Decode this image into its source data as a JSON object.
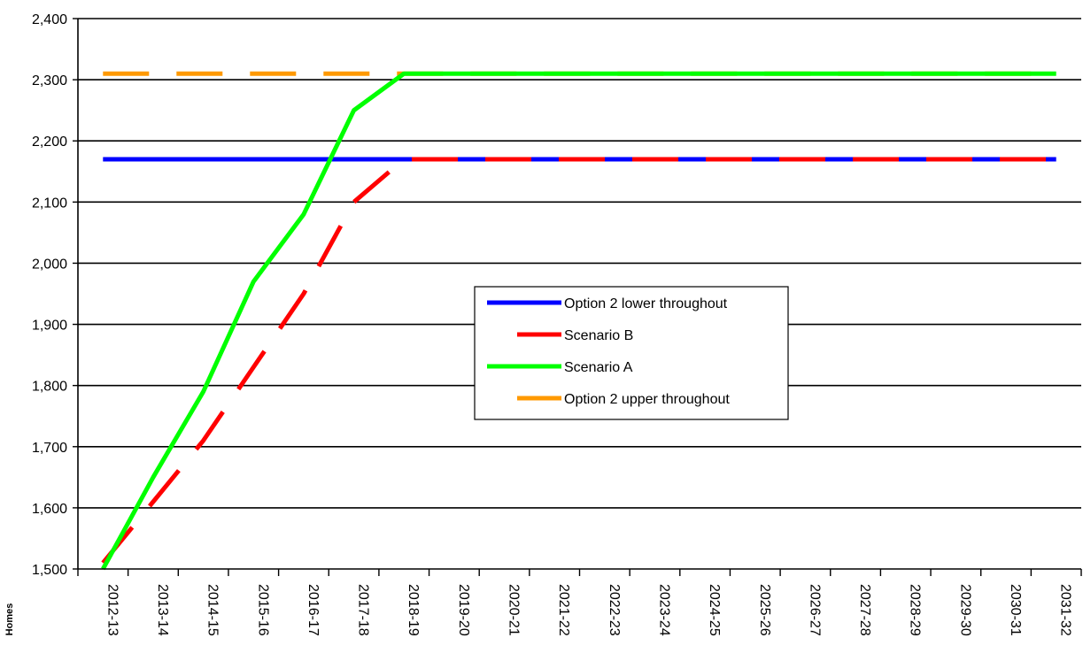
{
  "chart_data": {
    "type": "line",
    "ylabel": "Homes",
    "xlabel": "",
    "ylim": [
      1500,
      2400
    ],
    "yticks": [
      1500,
      1600,
      1700,
      1800,
      1900,
      2000,
      2100,
      2200,
      2300,
      2400
    ],
    "ytick_labels": [
      "1,500",
      "1,600",
      "1,700",
      "1,800",
      "1,900",
      "2,000",
      "2,100",
      "2,200",
      "2,300",
      "2,400"
    ],
    "grid": true,
    "legend_position": "center-right",
    "categories": [
      "2012-13",
      "2013-14",
      "2014-15",
      "2015-16",
      "2016-17",
      "2017-18",
      "2018-19",
      "2019-20",
      "2020-21",
      "2021-22",
      "2022-23",
      "2023-24",
      "2024-25",
      "2025-26",
      "2026-27",
      "2027-28",
      "2028-29",
      "2029-30",
      "2030-31",
      "2031-32"
    ],
    "series": [
      {
        "name": "Option 2 lower throughout",
        "color": "#0000ff",
        "style": "solid",
        "values": [
          2170,
          2170,
          2170,
          2170,
          2170,
          2170,
          2170,
          2170,
          2170,
          2170,
          2170,
          2170,
          2170,
          2170,
          2170,
          2170,
          2170,
          2170,
          2170,
          2170
        ]
      },
      {
        "name": "Scenario B",
        "color": "#ff0000",
        "style": "dashed",
        "values": [
          1510,
          1610,
          1710,
          1830,
          1950,
          2100,
          2170,
          2170,
          2170,
          2170,
          2170,
          2170,
          2170,
          2170,
          2170,
          2170,
          2170,
          2170,
          2170,
          2170
        ]
      },
      {
        "name": "Scenario A",
        "color": "#00ff00",
        "style": "solid",
        "values": [
          1500,
          1650,
          1790,
          1970,
          2080,
          2250,
          2310,
          2310,
          2310,
          2310,
          2310,
          2310,
          2310,
          2310,
          2310,
          2310,
          2310,
          2310,
          2310,
          2310
        ]
      },
      {
        "name": "Option 2 upper throughout",
        "color": "#ff9900",
        "style": "dashed",
        "values": [
          2310,
          2310,
          2310,
          2310,
          2310,
          2310,
          2310,
          2310,
          2310,
          2310,
          2310,
          2310,
          2310,
          2310,
          2310,
          2310,
          2310,
          2310,
          2310,
          2310
        ]
      }
    ],
    "draw_order": [
      3,
      0,
      1,
      2
    ]
  }
}
